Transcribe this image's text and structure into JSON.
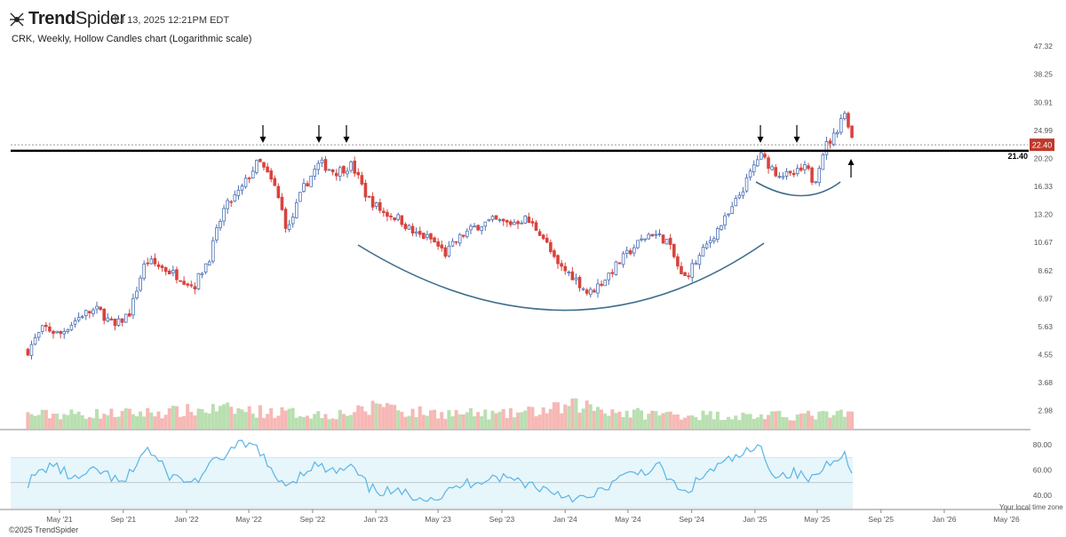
{
  "header": {
    "brand_bold": "Trend",
    "brand_light": "Spider",
    "timestamp": "Jul 13, 2025 12:21PM EDT",
    "subtitle": "CRK, Weekly, Hollow Candles chart (Logarithmic scale)"
  },
  "footer": {
    "copyright": "©2025 TrendSpider",
    "local_time_zone": "Your local time zone"
  },
  "colors": {
    "up": "#4a6fb5",
    "down": "#d9433d",
    "vol_up": "#b9dfb0",
    "vol_down": "#f6b8b5",
    "rsi_line": "#5ab4e6",
    "rsi_band": "#e6f6fb",
    "arc": "#3f6e8c",
    "support": "#000000",
    "price_tag": "#c0392b"
  },
  "chart_data": {
    "type": "candlestick",
    "scale": "log",
    "symbol": "CRK",
    "interval": "Weekly",
    "style": "Hollow Candles",
    "x_ticks": [
      "May '21",
      "Sep '21",
      "Jan '22",
      "May '22",
      "Sep '22",
      "Jan '23",
      "May '23",
      "Sep '23",
      "Jan '24",
      "May '24",
      "Sep '24",
      "Jan '25",
      "May '25",
      "Sep '25",
      "Jan '26",
      "May '26"
    ],
    "y_ticks": [
      47.32,
      38.25,
      30.91,
      24.99,
      20.2,
      16.33,
      13.2,
      10.67,
      8.62,
      6.97,
      5.63,
      4.55,
      3.68,
      2.98
    ],
    "y_range": [
      2.7,
      50
    ],
    "support_level": 21.4,
    "last_price": 22.4,
    "arrow_annotations": [
      {
        "date": "May '22",
        "direction": "down"
      },
      {
        "date": "Sep '22",
        "direction": "down"
      },
      {
        "date": "Nov '22",
        "direction": "down"
      },
      {
        "date": "Jan '25",
        "direction": "down"
      },
      {
        "date": "Apr '25",
        "direction": "down"
      },
      {
        "date": "Jul '25",
        "direction": "up"
      }
    ],
    "close_anchors": [
      [
        "2021-03-01",
        4.7
      ],
      [
        "2021-04-01",
        5.6
      ],
      [
        "2021-05-01",
        5.3
      ],
      [
        "2021-06-15",
        6.2
      ],
      [
        "2021-07-15",
        6.4
      ],
      [
        "2021-08-15",
        5.6
      ],
      [
        "2021-09-15",
        6.3
      ],
      [
        "2021-10-15",
        9.3
      ],
      [
        "2021-11-15",
        8.8
      ],
      [
        "2021-12-20",
        8.2
      ],
      [
        "2022-01-15",
        7.6
      ],
      [
        "2022-02-15",
        9.6
      ],
      [
        "2022-03-15",
        13.8
      ],
      [
        "2022-04-15",
        15.8
      ],
      [
        "2022-05-20",
        19.8
      ],
      [
        "2022-06-20",
        16.2
      ],
      [
        "2022-07-15",
        11.5
      ],
      [
        "2022-08-15",
        16.2
      ],
      [
        "2022-09-15",
        19.5
      ],
      [
        "2022-10-15",
        18.2
      ],
      [
        "2022-11-15",
        19.2
      ],
      [
        "2022-12-15",
        15.0
      ],
      [
        "2023-01-15",
        13.4
      ],
      [
        "2023-02-15",
        12.8
      ],
      [
        "2023-03-15",
        11.4
      ],
      [
        "2023-04-15",
        11.0
      ],
      [
        "2023-05-15",
        9.8
      ],
      [
        "2023-06-15",
        11.2
      ],
      [
        "2023-07-15",
        12.1
      ],
      [
        "2023-08-15",
        12.6
      ],
      [
        "2023-09-15",
        12.3
      ],
      [
        "2023-10-15",
        12.8
      ],
      [
        "2023-11-15",
        11.5
      ],
      [
        "2023-12-15",
        9.0
      ],
      [
        "2024-01-15",
        8.3
      ],
      [
        "2024-02-15",
        7.2
      ],
      [
        "2024-03-15",
        8.0
      ],
      [
        "2024-04-15",
        9.2
      ],
      [
        "2024-05-15",
        10.4
      ],
      [
        "2024-06-15",
        11.5
      ],
      [
        "2024-07-15",
        10.8
      ],
      [
        "2024-08-15",
        8.0
      ],
      [
        "2024-09-15",
        9.5
      ],
      [
        "2024-10-15",
        11.4
      ],
      [
        "2024-11-15",
        13.4
      ],
      [
        "2024-12-15",
        16.8
      ],
      [
        "2025-01-10",
        20.8
      ],
      [
        "2025-02-10",
        18.2
      ],
      [
        "2025-03-10",
        17.6
      ],
      [
        "2025-04-10",
        18.8
      ],
      [
        "2025-04-25",
        16.7
      ],
      [
        "2025-05-15",
        22.0
      ],
      [
        "2025-06-05",
        24.2
      ],
      [
        "2025-06-20",
        28.8
      ],
      [
        "2025-06-30",
        26.5
      ],
      [
        "2025-07-10",
        22.4
      ]
    ],
    "volume_anchors": [
      [
        "2021-03-01",
        0.5
      ],
      [
        "2021-09-15",
        0.55
      ],
      [
        "2021-12-01",
        0.6
      ],
      [
        "2022-03-01",
        0.7
      ],
      [
        "2022-06-15",
        0.6
      ],
      [
        "2022-10-01",
        0.5
      ],
      [
        "2022-12-20",
        0.65
      ],
      [
        "2023-01-05",
        1.0
      ],
      [
        "2023-03-01",
        0.6
      ],
      [
        "2023-09-01",
        0.5
      ],
      [
        "2023-12-15",
        0.7
      ],
      [
        "2024-02-01",
        0.85
      ],
      [
        "2024-05-01",
        0.55
      ],
      [
        "2024-09-01",
        0.5
      ],
      [
        "2025-01-01",
        0.45
      ],
      [
        "2025-07-10",
        0.5
      ]
    ],
    "rsi_range": [
      30,
      90
    ],
    "rsi_ticks": [
      80.0,
      60.0,
      40.0
    ],
    "rsi_band": [
      30,
      70
    ],
    "rsi_anchors": [
      [
        "2021-03-01",
        50
      ],
      [
        "2021-04-15",
        65
      ],
      [
        "2021-06-01",
        52
      ],
      [
        "2021-07-15",
        60
      ],
      [
        "2021-09-01",
        48
      ],
      [
        "2021-10-15",
        78
      ],
      [
        "2021-12-01",
        55
      ],
      [
        "2022-01-15",
        50
      ],
      [
        "2022-03-01",
        68
      ],
      [
        "2022-04-15",
        80
      ],
      [
        "2022-05-20",
        78
      ],
      [
        "2022-06-20",
        52
      ],
      [
        "2022-07-20",
        50
      ],
      [
        "2022-09-01",
        64
      ],
      [
        "2022-10-15",
        58
      ],
      [
        "2022-11-15",
        62
      ],
      [
        "2022-12-20",
        45
      ],
      [
        "2023-02-01",
        42
      ],
      [
        "2023-03-15",
        40
      ],
      [
        "2023-05-01",
        38
      ],
      [
        "2023-06-15",
        48
      ],
      [
        "2023-08-15",
        55
      ],
      [
        "2023-10-01",
        52
      ],
      [
        "2023-11-15",
        46
      ],
      [
        "2024-01-01",
        40
      ],
      [
        "2024-02-15",
        36
      ],
      [
        "2024-04-01",
        50
      ],
      [
        "2024-05-15",
        58
      ],
      [
        "2024-07-01",
        62
      ],
      [
        "2024-08-15",
        40
      ],
      [
        "2024-10-01",
        58
      ],
      [
        "2024-11-15",
        68
      ],
      [
        "2025-01-10",
        78
      ],
      [
        "2025-02-10",
        55
      ],
      [
        "2025-03-15",
        58
      ],
      [
        "2025-04-20",
        52
      ],
      [
        "2025-05-20",
        65
      ],
      [
        "2025-06-20",
        75
      ],
      [
        "2025-07-10",
        52
      ]
    ]
  }
}
